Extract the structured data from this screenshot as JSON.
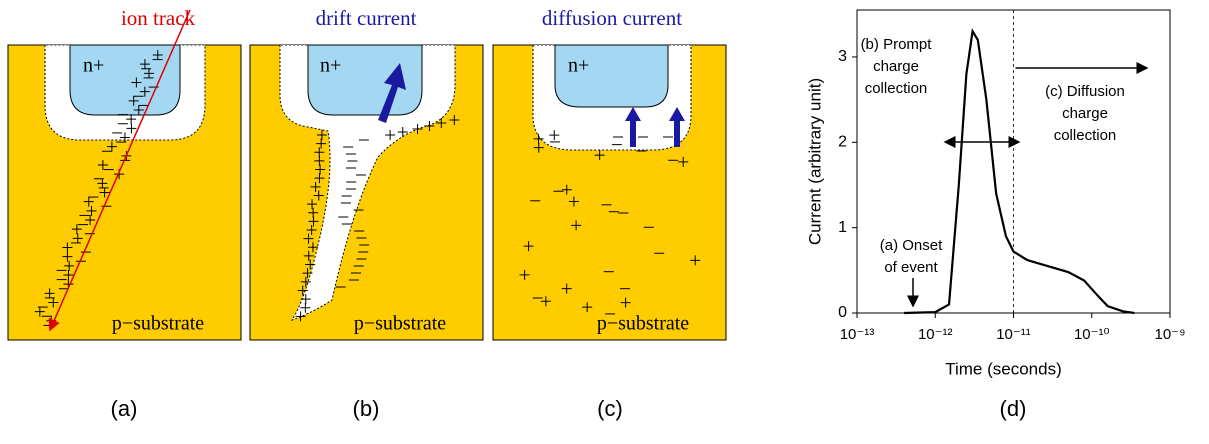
{
  "panels": [
    {
      "title": "ion track",
      "region": "n+",
      "substrate": "p−substrate",
      "caption": "(a)"
    },
    {
      "title": "drift current",
      "region": "n+",
      "substrate": "p−substrate",
      "caption": "(b)"
    },
    {
      "title": "diffusion current",
      "region": "n+",
      "substrate": "p−substrate",
      "caption": "(c)"
    }
  ],
  "chart_data": {
    "type": "line",
    "caption": "(d)",
    "xlabel": "Time (seconds)",
    "ylabel": "Current (arbitrary unit)",
    "x": [
      4e-13,
      1e-12,
      1.5e-12,
      2e-12,
      2.5e-12,
      3e-12,
      3.5e-12,
      4.5e-12,
      6e-12,
      8e-12,
      1e-11,
      1.5e-11,
      2.5e-11,
      5e-11,
      8e-11,
      1.2e-10,
      1.6e-10,
      2.5e-10,
      3.5e-10
    ],
    "values": [
      0,
      0.01,
      0.1,
      1.5,
      2.8,
      3.3,
      3.2,
      2.5,
      1.4,
      0.9,
      0.72,
      0.62,
      0.56,
      0.48,
      0.38,
      0.2,
      0.08,
      0.02,
      0
    ],
    "color": "#000000",
    "xscale": "log",
    "xlim": [
      1e-13,
      1e-09
    ],
    "xticks": [
      {
        "value": 1e-13,
        "label": "10⁻¹³"
      },
      {
        "value": 1e-12,
        "label": "10⁻¹²"
      },
      {
        "value": 1e-11,
        "label": "10⁻¹¹"
      },
      {
        "value": 1e-10,
        "label": "10⁻¹⁰"
      },
      {
        "value": 1e-09,
        "label": "10⁻⁹"
      }
    ],
    "ylim": [
      0,
      3.55
    ],
    "yticks": [
      0,
      1,
      2,
      3
    ],
    "vline": 1e-11,
    "annotations": [
      {
        "lines": [
          "(b) Prompt",
          "charge",
          "collection"
        ]
      },
      {
        "lines": [
          "(c) Diffusion",
          "charge",
          "collection"
        ]
      },
      {
        "lines": [
          "(a) Onset",
          "of event"
        ]
      }
    ]
  }
}
